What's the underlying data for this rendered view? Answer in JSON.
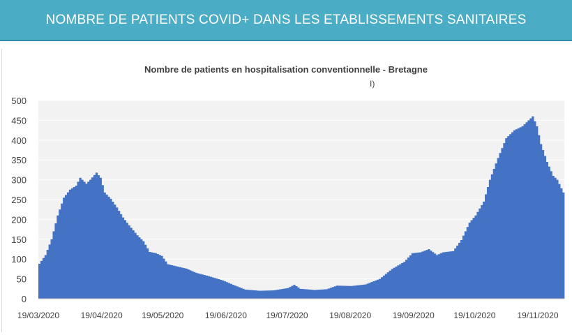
{
  "banner": {
    "title": "NOMBRE DE PATIENTS COVID+ DANS LES ETABLISSEMENTS SANITAIRES"
  },
  "colors": {
    "banner": "#4bacc6",
    "bars": "#4472c4",
    "plot_bg": "#f2f2f2",
    "grid": "#ffffff"
  },
  "chart_data": {
    "type": "bar",
    "title": "Nombre de patients en hospitalisation conventionnelle - Bretagne",
    "annotation": "I)",
    "xlabel": "",
    "ylabel": "",
    "ylim": [
      0,
      500
    ],
    "yticks": [
      0,
      50,
      100,
      150,
      200,
      250,
      300,
      350,
      400,
      450,
      500
    ],
    "grid": true,
    "legend": "none",
    "x_start": "2020-03-19",
    "x_end": "2020-12-01",
    "xtick_labels": [
      "19/03/2020",
      "19/04/2020",
      "19/05/2020",
      "19/06/2020",
      "19/07/2020",
      "19/08/2020",
      "19/09/2020",
      "19/10/2020",
      "19/11/2020"
    ],
    "anchors": [
      [
        "2020-03-19",
        88
      ],
      [
        "2020-03-22",
        110
      ],
      [
        "2020-03-25",
        150
      ],
      [
        "2020-03-28",
        210
      ],
      [
        "2020-03-31",
        255
      ],
      [
        "2020-04-03",
        275
      ],
      [
        "2020-04-06",
        285
      ],
      [
        "2020-04-08",
        305
      ],
      [
        "2020-04-11",
        290
      ],
      [
        "2020-04-13",
        300
      ],
      [
        "2020-04-16",
        318
      ],
      [
        "2020-04-18",
        305
      ],
      [
        "2020-04-20",
        268
      ],
      [
        "2020-04-23",
        252
      ],
      [
        "2020-04-26",
        230
      ],
      [
        "2020-04-29",
        205
      ],
      [
        "2020-05-02",
        185
      ],
      [
        "2020-05-06",
        160
      ],
      [
        "2020-05-09",
        145
      ],
      [
        "2020-05-12",
        118
      ],
      [
        "2020-05-15",
        115
      ],
      [
        "2020-05-18",
        108
      ],
      [
        "2020-05-21",
        87
      ],
      [
        "2020-05-25",
        82
      ],
      [
        "2020-05-30",
        76
      ],
      [
        "2020-06-04",
        65
      ],
      [
        "2020-06-10",
        57
      ],
      [
        "2020-06-17",
        46
      ],
      [
        "2020-06-23",
        33
      ],
      [
        "2020-06-28",
        23
      ],
      [
        "2020-07-05",
        20
      ],
      [
        "2020-07-12",
        21
      ],
      [
        "2020-07-19",
        27
      ],
      [
        "2020-07-22",
        35
      ],
      [
        "2020-07-25",
        25
      ],
      [
        "2020-08-01",
        22
      ],
      [
        "2020-08-07",
        24
      ],
      [
        "2020-08-12",
        33
      ],
      [
        "2020-08-19",
        32
      ],
      [
        "2020-08-26",
        36
      ],
      [
        "2020-09-02",
        50
      ],
      [
        "2020-09-08",
        75
      ],
      [
        "2020-09-14",
        93
      ],
      [
        "2020-09-18",
        115
      ],
      [
        "2020-09-22",
        117
      ],
      [
        "2020-09-26",
        125
      ],
      [
        "2020-09-30",
        110
      ],
      [
        "2020-10-03",
        117
      ],
      [
        "2020-10-08",
        120
      ],
      [
        "2020-10-12",
        148
      ],
      [
        "2020-10-16",
        192
      ],
      [
        "2020-10-19",
        210
      ],
      [
        "2020-10-23",
        245
      ],
      [
        "2020-10-26",
        300
      ],
      [
        "2020-10-30",
        355
      ],
      [
        "2020-11-03",
        405
      ],
      [
        "2020-11-07",
        425
      ],
      [
        "2020-11-11",
        435
      ],
      [
        "2020-11-14",
        450
      ],
      [
        "2020-11-16",
        460
      ],
      [
        "2020-11-18",
        435
      ],
      [
        "2020-11-20",
        390
      ],
      [
        "2020-11-23",
        345
      ],
      [
        "2020-11-26",
        310
      ],
      [
        "2020-11-28",
        300
      ],
      [
        "2020-12-01",
        268
      ]
    ]
  }
}
